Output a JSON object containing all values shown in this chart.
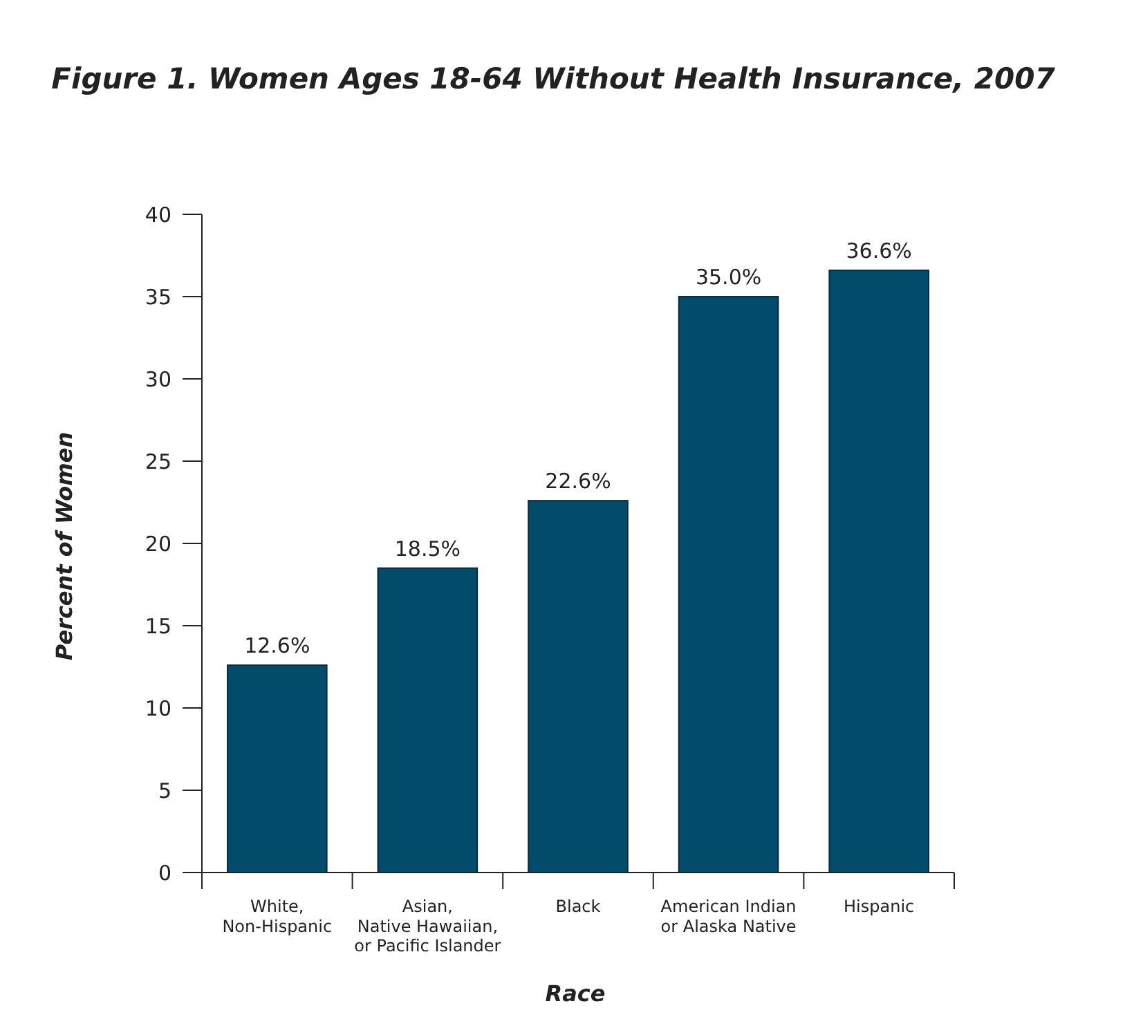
{
  "chart_data": {
    "type": "bar",
    "title": "Figure 1. Women Ages 18-64 Without Health Insurance, 2007",
    "xlabel": "Race",
    "ylabel": "Percent of Women",
    "categories": [
      "White,\nNon-Hispanic",
      "Asian,\nNative Hawaiian,\nor Pacific Islander",
      "Black",
      "American Indian\nor Alaska Native",
      "Hispanic"
    ],
    "values": [
      12.6,
      18.5,
      22.6,
      35.0,
      36.6
    ],
    "value_labels": [
      "12.6%",
      "18.5%",
      "22.6%",
      "35.0%",
      "36.6%"
    ],
    "color": "#024b6b",
    "ylim": [
      0,
      40
    ],
    "yticks": [
      0,
      5,
      10,
      15,
      20,
      25,
      30,
      35,
      40
    ],
    "grid": false
  }
}
